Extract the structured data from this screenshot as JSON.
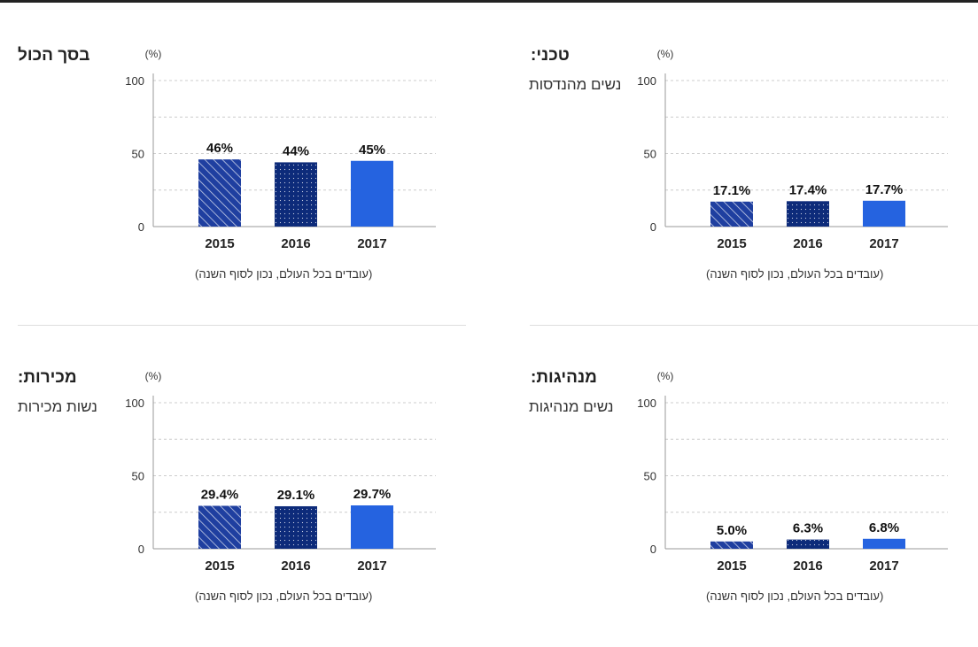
{
  "colors": {
    "dark": "#0d2b7a",
    "bright": "#2563e0",
    "hatch": "#1f3fa0",
    "grid": "#cccccc",
    "axis": "#999999"
  },
  "chart_data": [
    {
      "type": "bar",
      "title": "בסך הכול",
      "subtitle": "",
      "categories": [
        "2015",
        "2016",
        "2017"
      ],
      "values": [
        46,
        44,
        45
      ],
      "value_labels": [
        "46%",
        "44%",
        "45%"
      ],
      "unit": "(%)",
      "y_ticks": [
        "0",
        "50",
        "100"
      ],
      "ylim": [
        0,
        100
      ],
      "note": "(עובדים בכל העולם, נכון לסוף השנה)"
    },
    {
      "type": "bar",
      "title": "טכני:",
      "subtitle": "נשים מהנדסות",
      "categories": [
        "2015",
        "2016",
        "2017"
      ],
      "values": [
        17.1,
        17.4,
        17.7
      ],
      "value_labels": [
        "17.1%",
        "17.4%",
        "17.7%"
      ],
      "unit": "(%)",
      "y_ticks": [
        "0",
        "50",
        "100"
      ],
      "ylim": [
        0,
        100
      ],
      "note": "(עובדים בכל העולם, נכון לסוף השנה)"
    },
    {
      "type": "bar",
      "title": "מכירות:",
      "subtitle": "נשות מכירות",
      "categories": [
        "2015",
        "2016",
        "2017"
      ],
      "values": [
        29.4,
        29.1,
        29.7
      ],
      "value_labels": [
        "29.4%",
        "29.1%",
        "29.7%"
      ],
      "unit": "(%)",
      "y_ticks": [
        "0",
        "50",
        "100"
      ],
      "ylim": [
        0,
        100
      ],
      "note": "(עובדים בכל העולם, נכון לסוף השנה)"
    },
    {
      "type": "bar",
      "title": "מנהיגות:",
      "subtitle": "נשים מנהיגות",
      "categories": [
        "2015",
        "2016",
        "2017"
      ],
      "values": [
        5.0,
        6.3,
        6.8
      ],
      "value_labels": [
        "5.0%",
        "6.3%",
        "6.8%"
      ],
      "unit": "(%)",
      "y_ticks": [
        "0",
        "50",
        "100"
      ],
      "ylim": [
        0,
        100
      ],
      "note": "(עובדים בכל העולם, נכון לסוף השנה)"
    }
  ]
}
